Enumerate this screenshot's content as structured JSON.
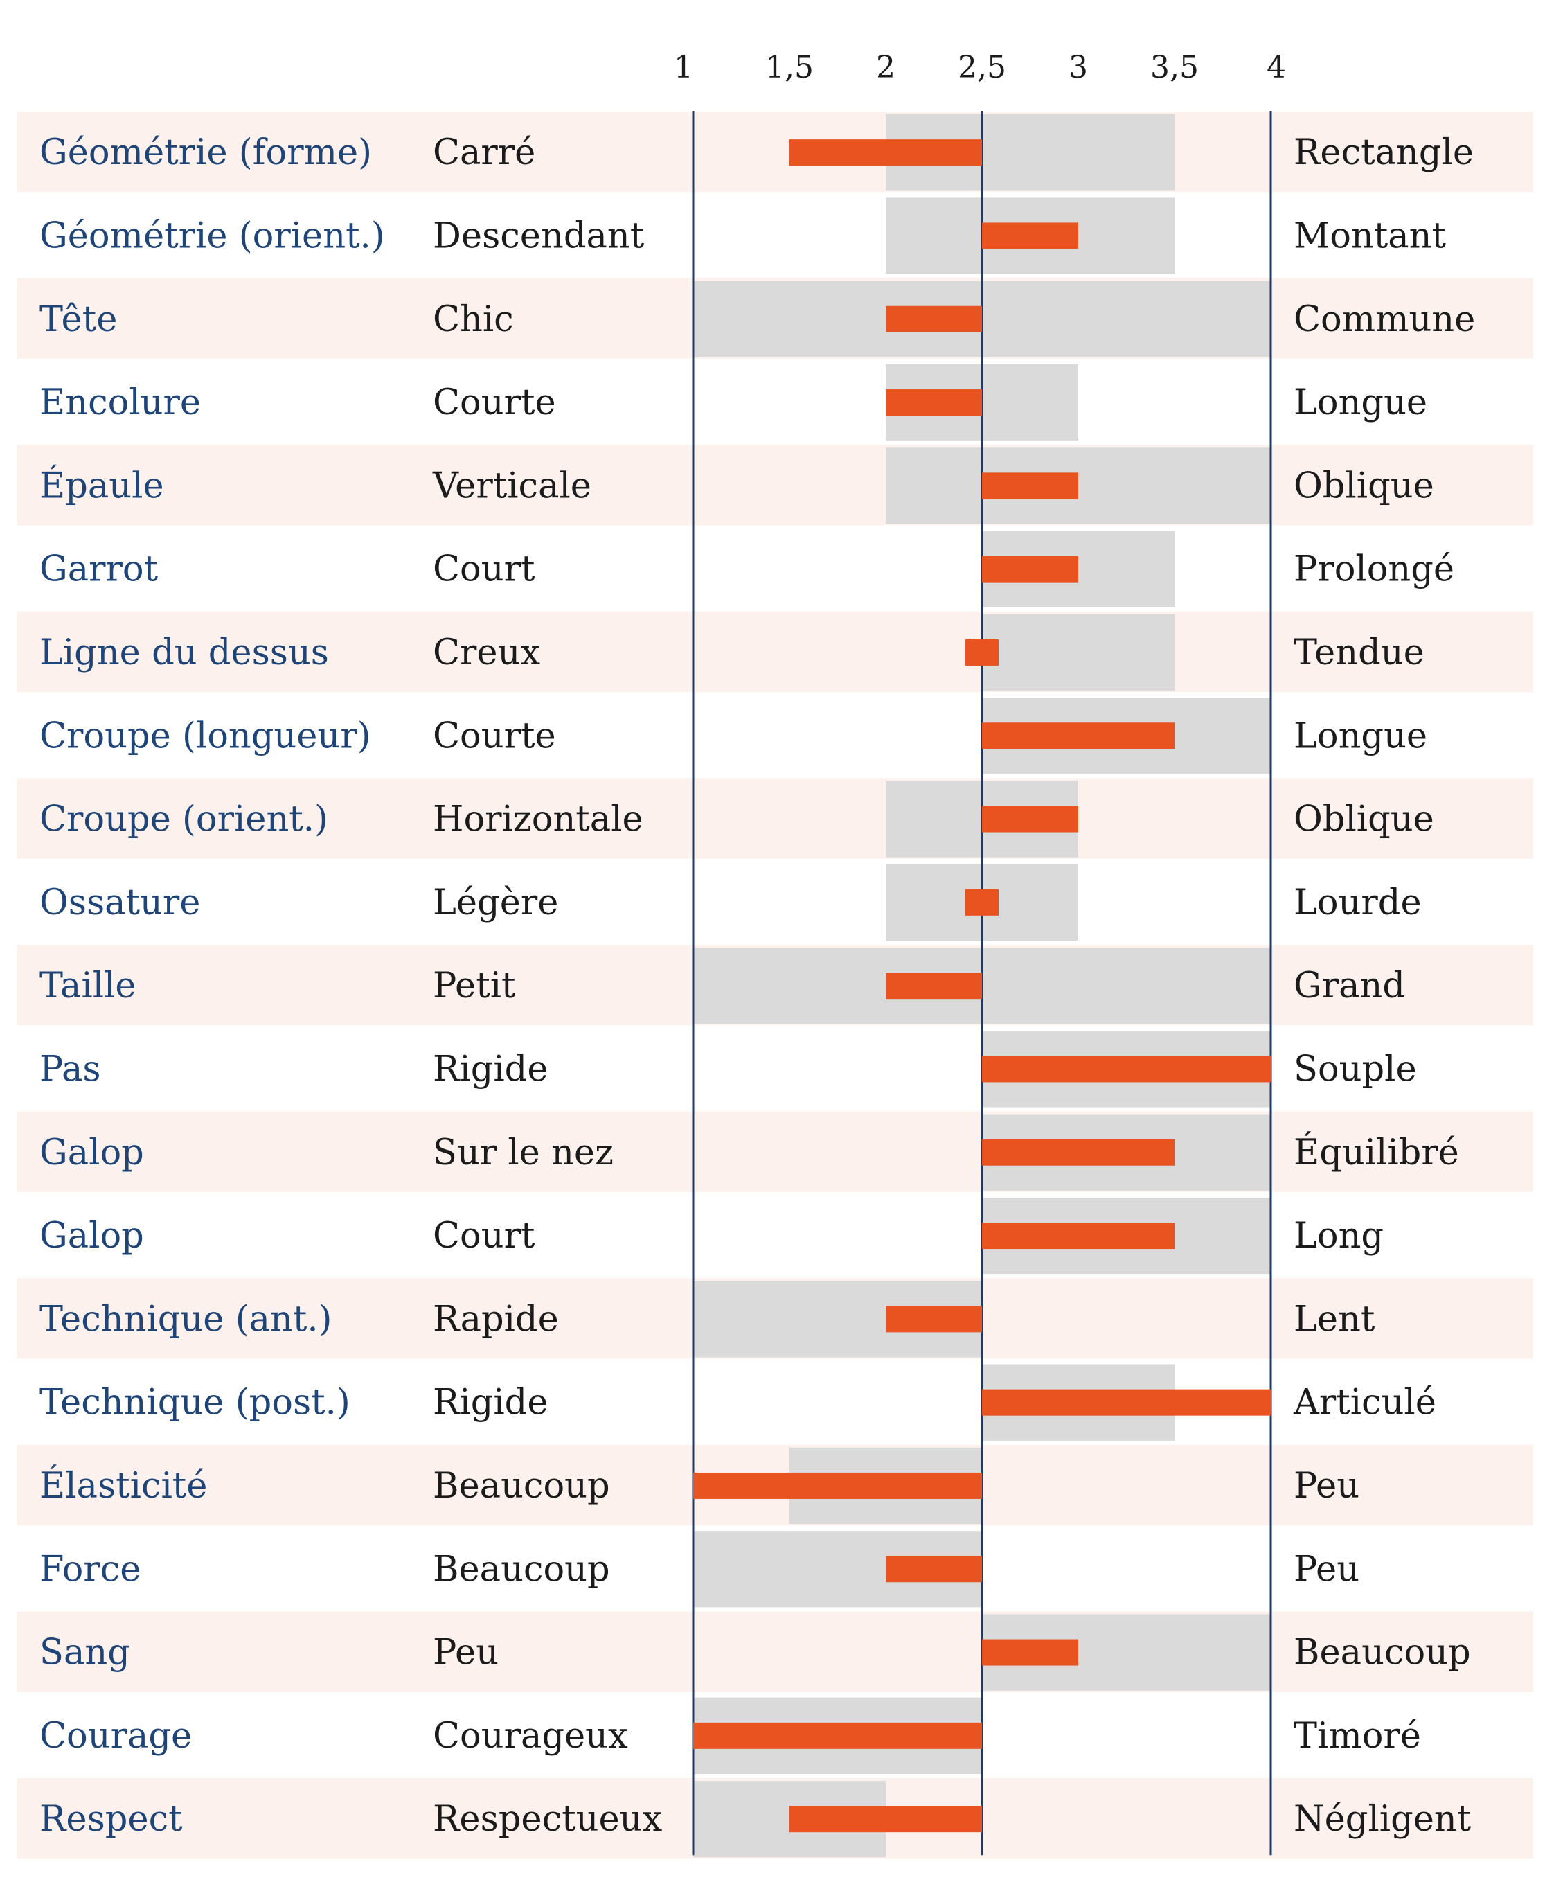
{
  "chart_data": {
    "type": "bar",
    "title": "",
    "xlabel": "",
    "ylabel": "",
    "xlim": [
      1,
      4
    ],
    "midpoint": 2.5,
    "ticks": [
      "1",
      "1,5",
      "2",
      "2,5",
      "3",
      "3,5",
      "4"
    ],
    "tick_values": [
      1,
      1.5,
      2,
      2.5,
      3,
      3.5,
      4
    ],
    "grid": false,
    "colors": {
      "bar": "#e85320",
      "range": "#dadada",
      "row_shade": "#fcf1ec",
      "axis": "#1f3a66",
      "trait_text": "#1f4477",
      "pole_text": "#1b1b1b"
    },
    "rows": [
      {
        "trait": "Géométrie (forme)",
        "low": "Carré",
        "high": "Rectangle",
        "value": 1.5,
        "range": [
          2,
          3.5
        ]
      },
      {
        "trait": "Géométrie (orient.)",
        "low": "Descendant",
        "high": "Montant",
        "value": 3,
        "range": [
          2,
          3.5
        ]
      },
      {
        "trait": "Tête",
        "low": "Chic",
        "high": "Commune",
        "value": 2,
        "range": [
          1,
          4
        ]
      },
      {
        "trait": "Encolure",
        "low": "Courte",
        "high": "Longue",
        "value": 2,
        "range": [
          2,
          3
        ]
      },
      {
        "trait": "Épaule",
        "low": "Verticale",
        "high": "Oblique",
        "value": 3,
        "range": [
          2,
          4
        ]
      },
      {
        "trait": "Garrot",
        "low": "Court",
        "high": "Prolongé",
        "value": 3,
        "range": [
          2.5,
          3.5
        ]
      },
      {
        "trait": "Ligne du dessus",
        "low": "Creux",
        "high": "Tendue",
        "value": 2.5,
        "range": [
          2.5,
          3.5
        ]
      },
      {
        "trait": "Croupe (longueur)",
        "low": "Courte",
        "high": "Longue",
        "value": 3.5,
        "range": [
          2.5,
          4
        ]
      },
      {
        "trait": "Croupe (orient.)",
        "low": "Horizontale",
        "high": "Oblique",
        "value": 3,
        "range": [
          2,
          3
        ]
      },
      {
        "trait": "Ossature",
        "low": "Légère",
        "high": "Lourde",
        "value": 2.5,
        "range": [
          2,
          3
        ]
      },
      {
        "trait": "Taille",
        "low": "Petit",
        "high": "Grand",
        "value": 2,
        "range": [
          1,
          4
        ]
      },
      {
        "trait": "Pas",
        "low": "Rigide",
        "high": "Souple",
        "value": 4,
        "range": [
          2.5,
          4
        ]
      },
      {
        "trait": "Galop",
        "low": "Sur le nez",
        "high": "Équilibré",
        "value": 3.5,
        "range": [
          2.5,
          4
        ]
      },
      {
        "trait": "Galop",
        "low": "Court",
        "high": "Long",
        "value": 3.5,
        "range": [
          2.5,
          4
        ]
      },
      {
        "trait": "Technique (ant.)",
        "low": "Rapide",
        "high": "Lent",
        "value": 2,
        "range": [
          1,
          2.5
        ]
      },
      {
        "trait": "Technique (post.)",
        "low": "Rigide",
        "high": "Articulé",
        "value": 4,
        "range": [
          2.5,
          3.5
        ]
      },
      {
        "trait": "Élasticité",
        "low": "Beaucoup",
        "high": "Peu",
        "value": 1,
        "range": [
          1.5,
          2.5
        ]
      },
      {
        "trait": "Force",
        "low": "Beaucoup",
        "high": "Peu",
        "value": 2,
        "range": [
          1,
          2.5
        ]
      },
      {
        "trait": "Sang",
        "low": "Peu",
        "high": "Beaucoup",
        "value": 3,
        "range": [
          2.5,
          4
        ]
      },
      {
        "trait": "Courage",
        "low": "Courageux",
        "high": "Timoré",
        "value": 1,
        "range": [
          1,
          2.5
        ]
      },
      {
        "trait": "Respect",
        "low": "Respectueux",
        "high": "Négligent",
        "value": 1.5,
        "range": [
          1,
          2
        ]
      }
    ]
  }
}
